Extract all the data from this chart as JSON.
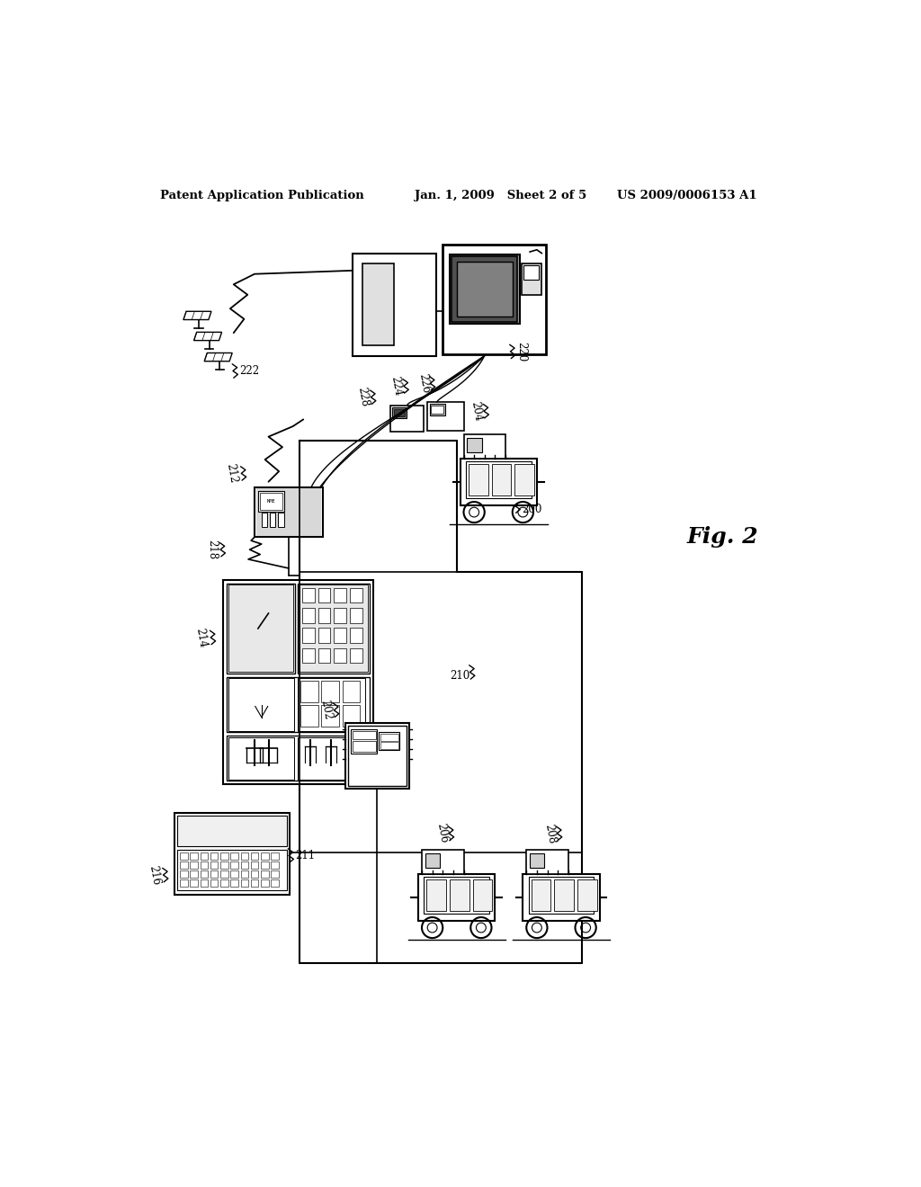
{
  "title_left": "Patent Application Publication",
  "title_center": "Jan. 1, 2009   Sheet 2 of 5",
  "title_right": "US 2009/0006153 A1",
  "fig_label": "Fig. 2",
  "background_color": "#ffffff",
  "line_color": "#000000"
}
